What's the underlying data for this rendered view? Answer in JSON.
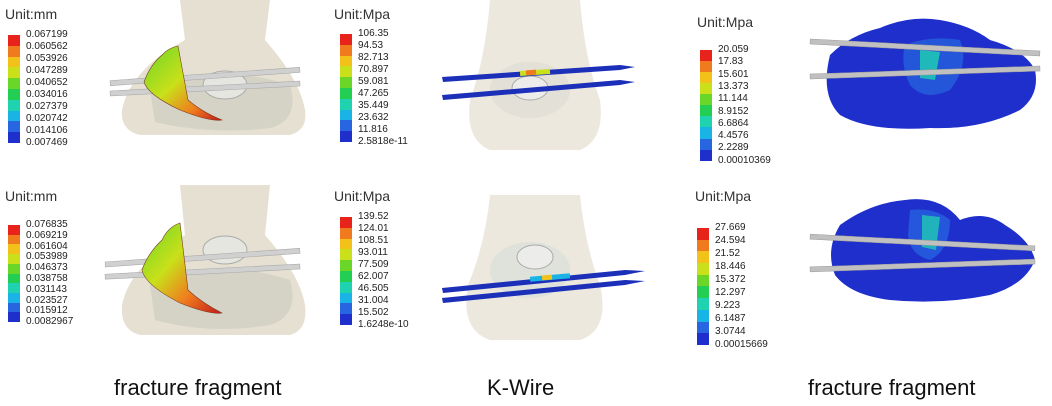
{
  "panels": [
    {
      "unit": "Unit:mm",
      "values": [
        "0.067199",
        "0.060562",
        "0.053926",
        "0.047289",
        "0.040652",
        "0.034016",
        "0.027379",
        "0.020742",
        "0.014106",
        "0.007469"
      ]
    },
    {
      "unit": "Unit:Mpa",
      "values": [
        "106.35",
        "94.53",
        "82.713",
        "70.897",
        "59.081",
        "47.265",
        "35.449",
        "23.632",
        "11.816",
        "2.5818e-11"
      ]
    },
    {
      "unit": "Unit:Mpa",
      "values": [
        "20.059",
        "17.83",
        "15.601",
        "13.373",
        "11.144",
        "8.9152",
        "6.6864",
        "4.4576",
        "2.2289",
        "0.00010369"
      ]
    },
    {
      "unit": "Unit:mm",
      "values": [
        "0.076835",
        "0.069219",
        "0.061604",
        "0.053989",
        "0.046373",
        "0.038758",
        "0.031143",
        "0.023527",
        "0.015912",
        "0.0082967"
      ]
    },
    {
      "unit": "Unit:Mpa",
      "values": [
        "139.52",
        "124.01",
        "108.51",
        "93.011",
        "77.509",
        "62.007",
        "46.505",
        "31.004",
        "15.502",
        "1.6248e-10"
      ]
    },
    {
      "unit": "Unit:Mpa",
      "values": [
        "27.669",
        "24.594",
        "21.52",
        "18.446",
        "15.372",
        "12.297",
        "9.223",
        "6.1487",
        "3.0744",
        "0.00015669"
      ]
    }
  ],
  "captions": [
    "fracture fragment",
    "K-Wire",
    "fracture fragment"
  ],
  "colors": {
    "scale": [
      "#e8231c",
      "#f07a1e",
      "#f2c21a",
      "#c9e01a",
      "#6ad628",
      "#22cf52",
      "#1fd2b0",
      "#1ab3e6",
      "#2766e0",
      "#1f2fcc"
    ],
    "bone": "#d9d0b8",
    "implant": "#c8c8c8",
    "wire_blue": "#1c2fb8"
  }
}
